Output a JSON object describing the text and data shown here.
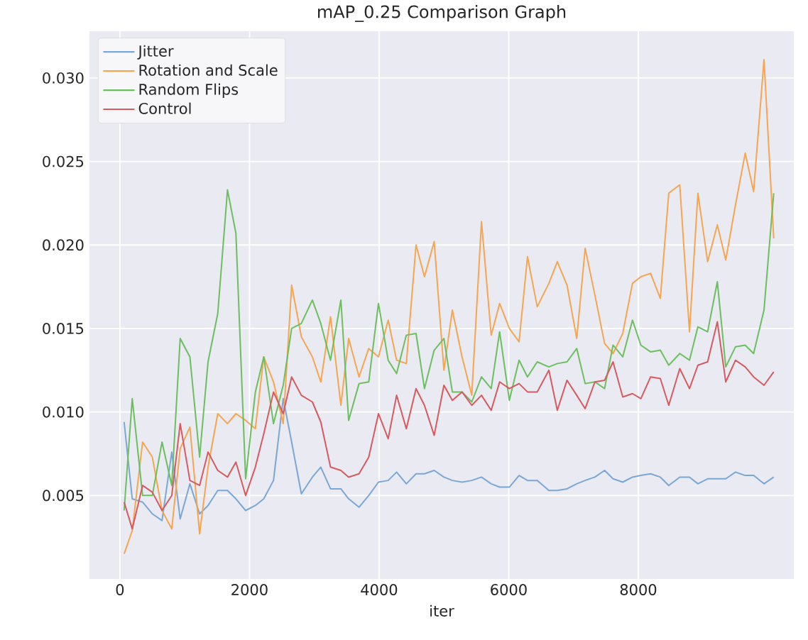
{
  "chart_data": {
    "type": "line",
    "title": "mAP_0.25 Comparison Graph",
    "xlabel": "iter",
    "x": [
      65,
      190,
      350,
      500,
      650,
      800,
      930,
      1080,
      1230,
      1360,
      1510,
      1660,
      1790,
      1940,
      2090,
      2220,
      2370,
      2520,
      2650,
      2800,
      2970,
      3100,
      3250,
      3410,
      3530,
      3690,
      3840,
      3990,
      4140,
      4270,
      4420,
      4570,
      4700,
      4850,
      5000,
      5130,
      5280,
      5430,
      5580,
      5730,
      5860,
      6010,
      6160,
      6290,
      6440,
      6620,
      6750,
      6900,
      7050,
      7180,
      7330,
      7480,
      7610,
      7760,
      7910,
      8040,
      8190,
      8340,
      8470,
      8640,
      8790,
      8920,
      9070,
      9220,
      9350,
      9500,
      9650,
      9780,
      9940,
      10090
    ],
    "series": [
      {
        "name": "Jitter",
        "color": "#7ba7d6",
        "values": [
          0.0094,
          0.0048,
          0.0046,
          0.0039,
          0.0035,
          0.0076,
          0.0036,
          0.0057,
          0.0039,
          0.0044,
          0.0053,
          0.0053,
          0.0048,
          0.0041,
          0.0044,
          0.0048,
          0.0059,
          0.0108,
          0.0082,
          0.0051,
          0.0061,
          0.0067,
          0.0054,
          0.0054,
          0.0048,
          0.0043,
          0.005,
          0.0058,
          0.0059,
          0.0064,
          0.0057,
          0.0063,
          0.0063,
          0.0065,
          0.0061,
          0.0059,
          0.0058,
          0.0059,
          0.0061,
          0.0057,
          0.0055,
          0.0055,
          0.0062,
          0.0059,
          0.0059,
          0.0053,
          0.0053,
          0.0054,
          0.0057,
          0.0059,
          0.0061,
          0.0065,
          0.006,
          0.0058,
          0.0061,
          0.0062,
          0.0063,
          0.0061,
          0.0056,
          0.0061,
          0.0061,
          0.0057,
          0.006,
          0.006,
          0.006,
          0.0064,
          0.0062,
          0.0062,
          0.0057,
          0.0061
        ]
      },
      {
        "name": "Rotation and Scale",
        "color": "#f6a550",
        "values": [
          0.0015,
          0.0029,
          0.0082,
          0.0073,
          0.0041,
          0.003,
          0.0078,
          0.0091,
          0.0027,
          0.0067,
          0.0099,
          0.0093,
          0.0099,
          0.0095,
          0.009,
          0.0133,
          0.0118,
          0.0093,
          0.0176,
          0.0145,
          0.0133,
          0.0118,
          0.0157,
          0.0104,
          0.0144,
          0.0121,
          0.0138,
          0.0133,
          0.0155,
          0.0131,
          0.0129,
          0.02,
          0.0181,
          0.0202,
          0.0125,
          0.0161,
          0.0133,
          0.011,
          0.0214,
          0.0146,
          0.0165,
          0.015,
          0.0142,
          0.0193,
          0.0163,
          0.0177,
          0.019,
          0.0176,
          0.0144,
          0.0198,
          0.017,
          0.0141,
          0.0135,
          0.0147,
          0.0177,
          0.0181,
          0.0183,
          0.0168,
          0.0231,
          0.0236,
          0.0148,
          0.0231,
          0.019,
          0.0212,
          0.0191,
          0.0224,
          0.0255,
          0.0232,
          0.0311,
          0.0204
        ]
      },
      {
        "name": "Random Flips",
        "color": "#6cbf5f",
        "values": [
          0.0041,
          0.0108,
          0.005,
          0.005,
          0.0082,
          0.0056,
          0.0144,
          0.0133,
          0.0073,
          0.013,
          0.0159,
          0.0233,
          0.0207,
          0.006,
          0.0112,
          0.0133,
          0.0093,
          0.0116,
          0.015,
          0.0153,
          0.0167,
          0.0153,
          0.0131,
          0.0167,
          0.0095,
          0.0117,
          0.0118,
          0.0165,
          0.0131,
          0.0123,
          0.0146,
          0.0147,
          0.0114,
          0.0137,
          0.0144,
          0.0112,
          0.0112,
          0.0106,
          0.0121,
          0.0114,
          0.0148,
          0.0107,
          0.0131,
          0.0121,
          0.013,
          0.0127,
          0.0129,
          0.013,
          0.0138,
          0.0117,
          0.0118,
          0.0114,
          0.014,
          0.0133,
          0.0155,
          0.014,
          0.0136,
          0.0137,
          0.0128,
          0.0135,
          0.0131,
          0.0151,
          0.0148,
          0.0178,
          0.0127,
          0.0139,
          0.014,
          0.0135,
          0.0161,
          0.0231
        ]
      },
      {
        "name": "Control",
        "color": "#d65a5f",
        "values": [
          0.0046,
          0.003,
          0.0056,
          0.0052,
          0.0041,
          0.005,
          0.0093,
          0.0059,
          0.0056,
          0.0076,
          0.0065,
          0.0061,
          0.007,
          0.005,
          0.0067,
          0.0087,
          0.0112,
          0.0099,
          0.0121,
          0.011,
          0.0106,
          0.0094,
          0.0067,
          0.0065,
          0.0061,
          0.0063,
          0.0073,
          0.0099,
          0.0084,
          0.011,
          0.009,
          0.0114,
          0.0104,
          0.0086,
          0.0116,
          0.0107,
          0.0112,
          0.0104,
          0.011,
          0.0101,
          0.0118,
          0.0114,
          0.0117,
          0.0112,
          0.0112,
          0.0125,
          0.0101,
          0.0119,
          0.011,
          0.0102,
          0.0118,
          0.0119,
          0.013,
          0.0109,
          0.0111,
          0.0108,
          0.0121,
          0.012,
          0.0104,
          0.0126,
          0.0114,
          0.0128,
          0.013,
          0.0154,
          0.0118,
          0.0131,
          0.0127,
          0.0121,
          0.0116,
          0.0124
        ]
      }
    ],
    "xlim": [
      -470,
      10400
    ],
    "ylim": [
      0.0,
      0.0328
    ],
    "xticks": [
      0,
      2000,
      4000,
      6000,
      8000
    ],
    "yticks": [
      {
        "value": 0.005,
        "label": "0.005"
      },
      {
        "value": 0.01,
        "label": "0.010"
      },
      {
        "value": 0.015,
        "label": "0.015"
      },
      {
        "value": 0.02,
        "label": "0.020"
      },
      {
        "value": 0.025,
        "label": "0.025"
      },
      {
        "value": 0.03,
        "label": "0.030"
      }
    ],
    "grid": true,
    "legend": "top left",
    "marker": "none",
    "line_style": "solid"
  }
}
